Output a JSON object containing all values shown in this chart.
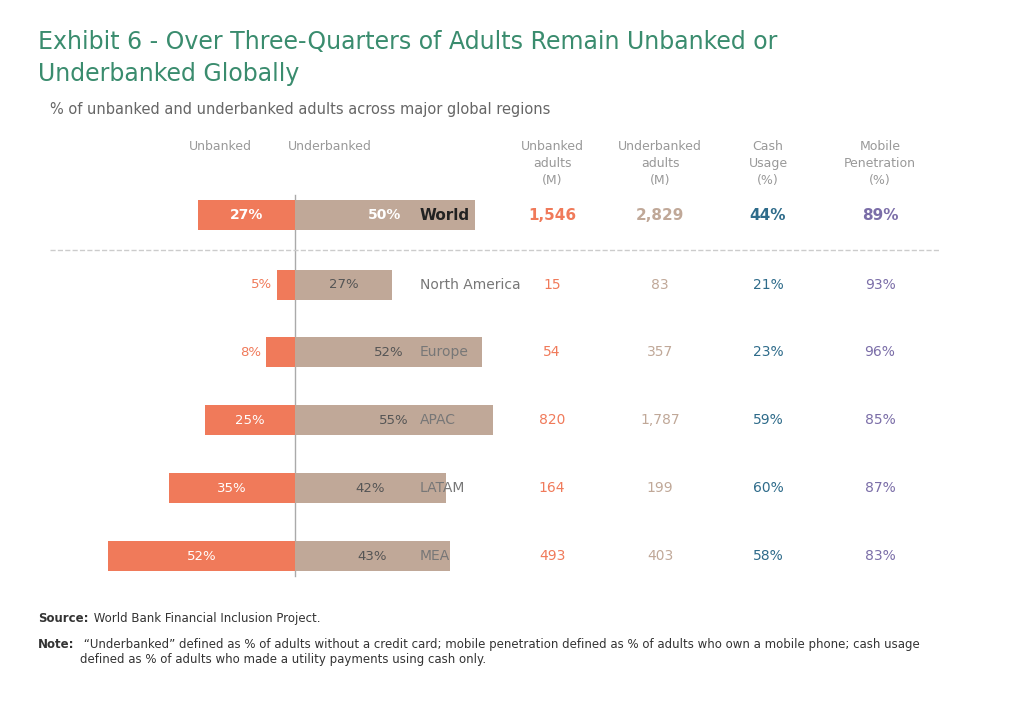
{
  "title_line1": "Exhibit 6 - Over Three-Quarters of Adults Remain Unbanked or",
  "title_line2": "Underbanked Globally",
  "subtitle": "% of unbanked and underbanked adults across major global regions",
  "regions": [
    "World",
    "North America",
    "Europe",
    "APAC",
    "LATAM",
    "MEA"
  ],
  "unbanked_pct": [
    27,
    5,
    8,
    25,
    35,
    52
  ],
  "underbanked_pct": [
    50,
    27,
    52,
    55,
    42,
    43
  ],
  "unbanked_adults_M": [
    "1,546",
    "15",
    "54",
    "820",
    "164",
    "493"
  ],
  "underbanked_adults_M": [
    "2,829",
    "83",
    "357",
    "1,787",
    "199",
    "403"
  ],
  "cash_usage_pct": [
    "44%",
    "21%",
    "23%",
    "59%",
    "60%",
    "58%"
  ],
  "mobile_penetration_pct": [
    "89%",
    "93%",
    "96%",
    "85%",
    "87%",
    "83%"
  ],
  "unbanked_color": "#F07A5A",
  "underbanked_color": "#C0A898",
  "title_color": "#3A8C6E",
  "subtitle_color": "#666666",
  "region_color_world": "#222222",
  "region_color": "#777777",
  "unbanked_adults_color": "#F07A5A",
  "underbanked_adults_color": "#C0A898",
  "cash_usage_color": "#2E6B8A",
  "mobile_penetration_color": "#7B6EA8",
  "col_header_color": "#999999",
  "background_color": "#FFFFFF",
  "source_bold": "Source:",
  "source_text": " World Bank Financial Inclusion Project.",
  "note_bold": "Note:",
  "note_text": " “Underbanked” defined as % of adults without a credit card; mobile penetration defined as % of adults who own a mobile phone; cash usage\ndefined as % of adults who made a utility payments using cash only."
}
